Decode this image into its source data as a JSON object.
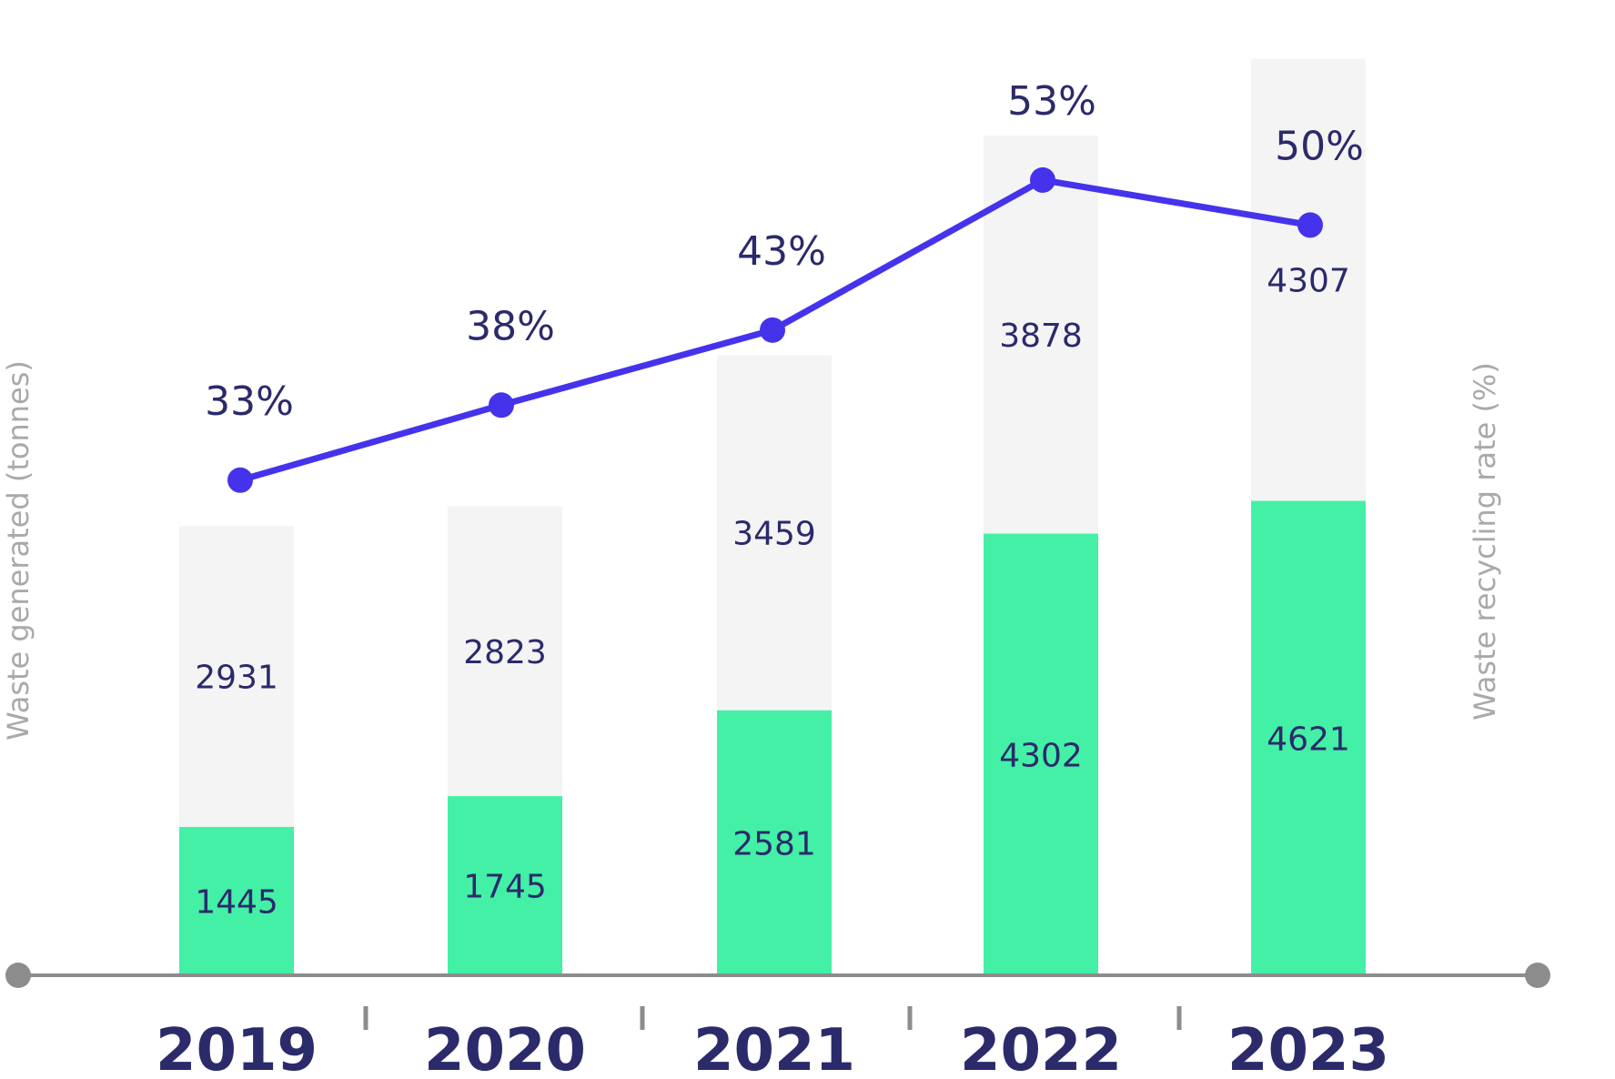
{
  "chart_data": {
    "type": "bar",
    "stacked": true,
    "categories": [
      "2019",
      "2020",
      "2021",
      "2022",
      "2023"
    ],
    "series": [
      {
        "values": [
          1445,
          1745,
          2581,
          4302,
          4621
        ],
        "color": "#43f0a6"
      },
      {
        "values": [
          2931,
          2823,
          3459,
          3878,
          4307
        ],
        "color": "#f4f4f4"
      }
    ],
    "line_series": {
      "values": [
        33,
        38,
        43,
        53,
        50
      ],
      "suffix": "%",
      "color": "#4533ec"
    },
    "ylabel_left": "Waste generated (tonnes)",
    "ylabel_right": "Waste recycling rate (%)",
    "ylim_left": [
      0,
      9500
    ],
    "ylim_right": [
      0,
      65
    ],
    "grid": false,
    "colors": {
      "text": "#2b2a6b",
      "axis": "#8c8c8c",
      "axis_title": "#a9a9a9"
    }
  }
}
